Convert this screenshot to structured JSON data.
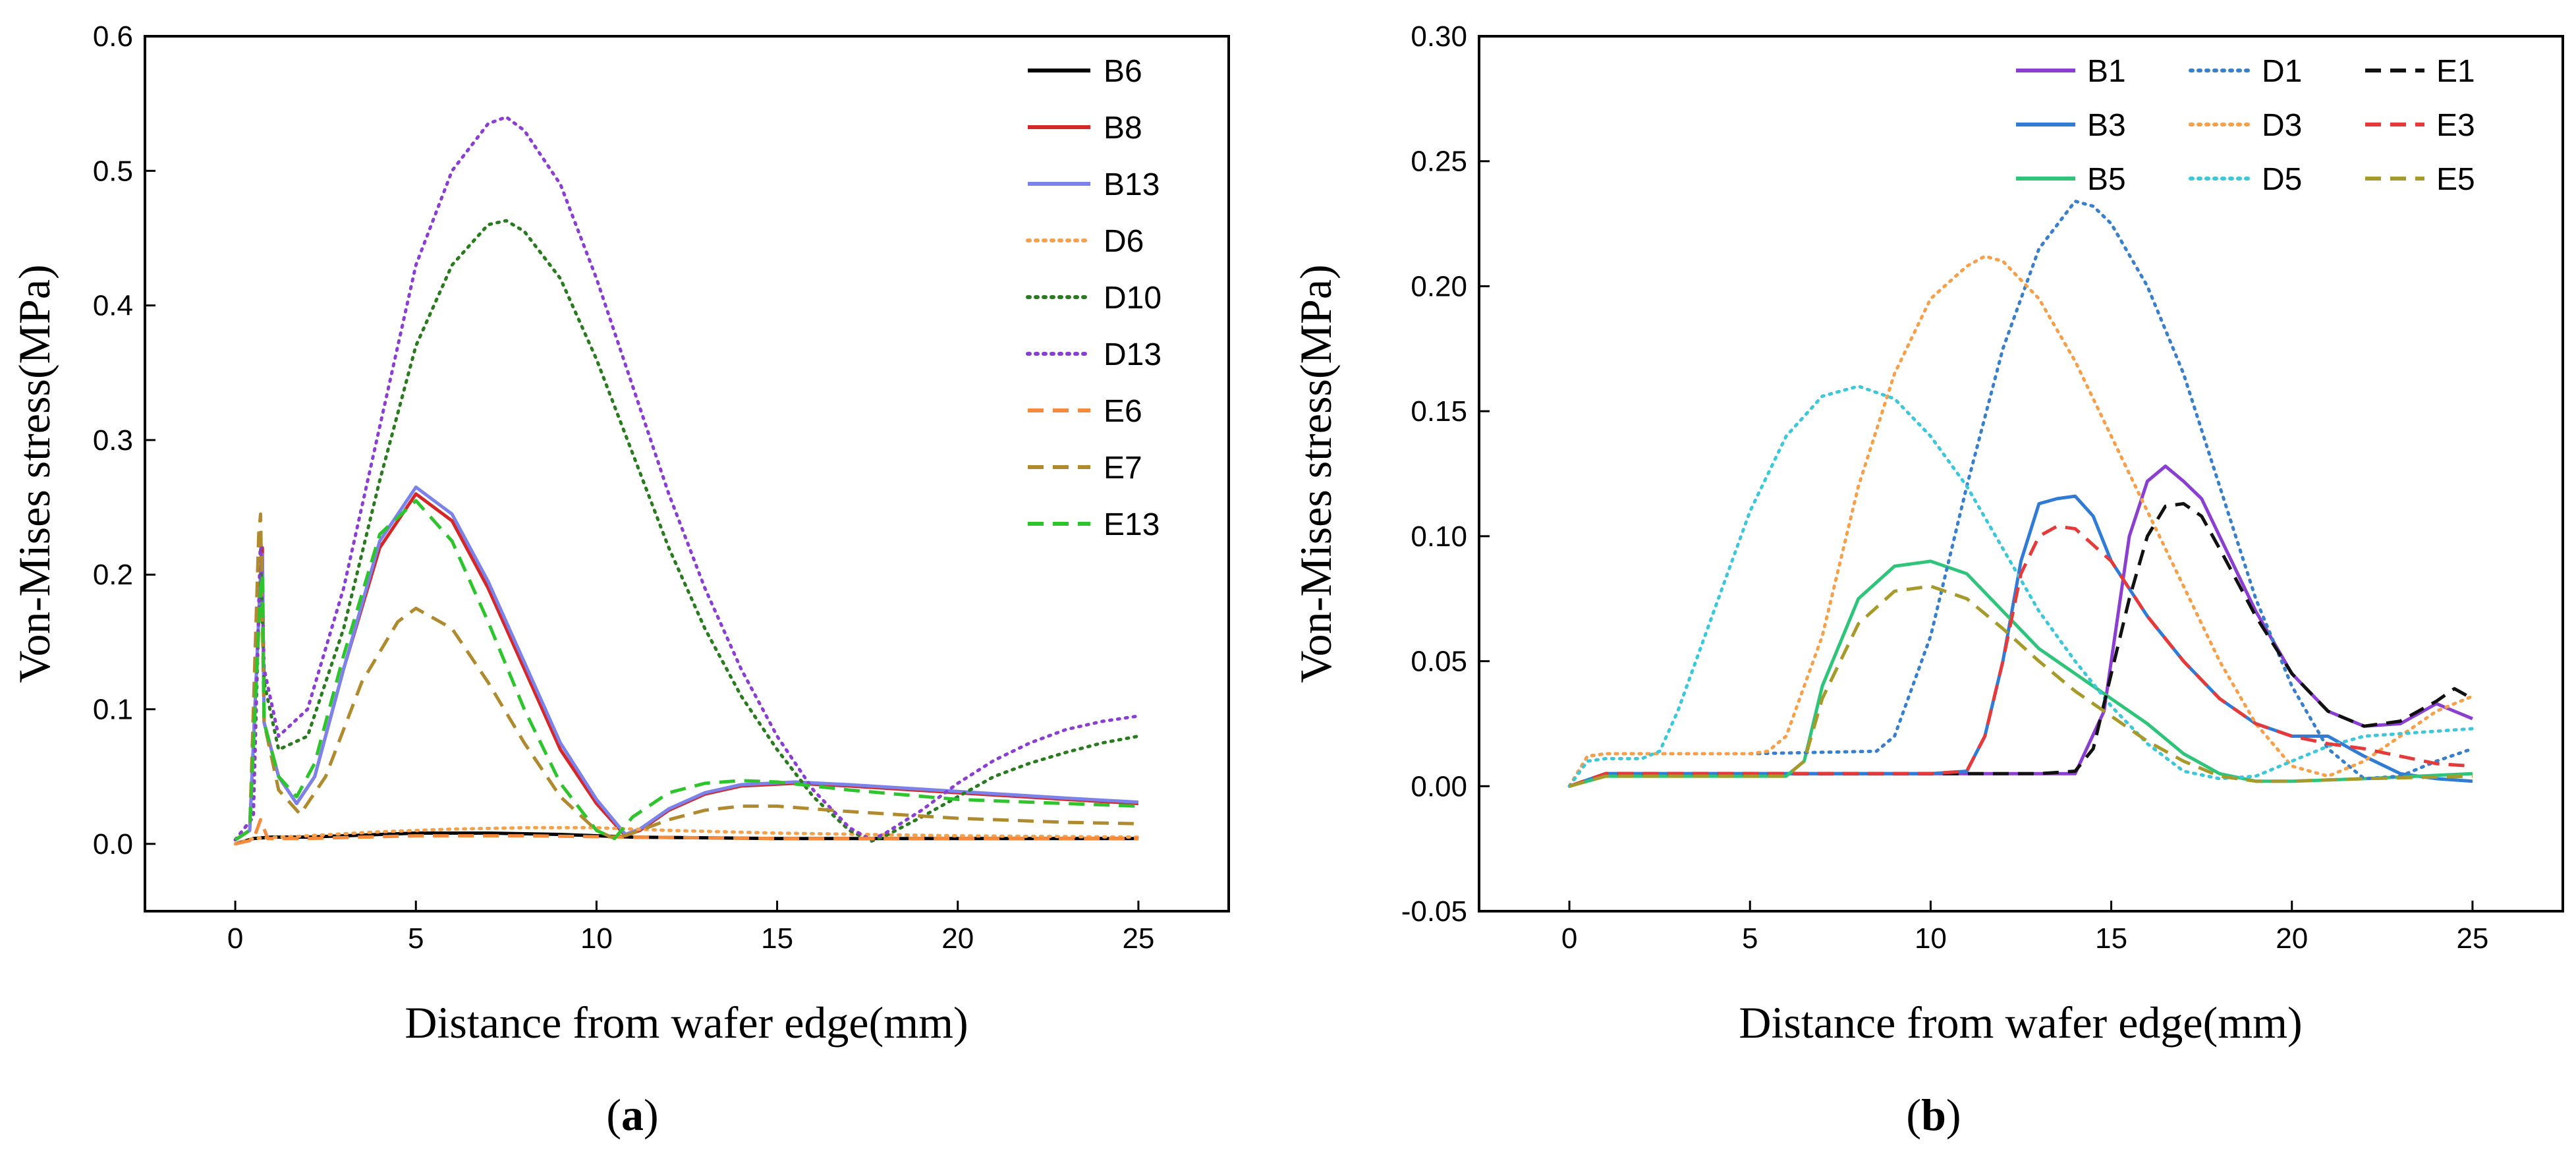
{
  "chart_data": [
    {
      "type": "line",
      "panel_label": "a",
      "title": "",
      "xlabel": "Distance from wafer edge(mm)",
      "ylabel": "Von-Mises stress(MPa)",
      "xlim": [
        -2.5,
        27.5
      ],
      "ylim": [
        -0.05,
        0.6
      ],
      "xticks": [
        0,
        5,
        10,
        15,
        20,
        25
      ],
      "yticks": [
        0.0,
        0.1,
        0.2,
        0.3,
        0.4,
        0.5,
        0.6
      ],
      "ytick_decimals": 1,
      "legend_position": "top-right",
      "legend_layout": "column",
      "series": [
        {
          "name": "B6",
          "color": "#000000",
          "style": "solid",
          "x": [
            0,
            0.5,
            1,
            2,
            3,
            5,
            7,
            9,
            11,
            15,
            20,
            25
          ],
          "y": [
            0.0,
            0.004,
            0.005,
            0.005,
            0.006,
            0.008,
            0.008,
            0.007,
            0.005,
            0.004,
            0.004,
            0.004
          ]
        },
        {
          "name": "B8",
          "color": "#d62728",
          "style": "solid",
          "x": [
            0,
            0.4,
            0.7,
            0.75,
            0.8,
            1.2,
            1.7,
            2.2,
            3,
            4,
            5,
            6,
            7,
            8,
            9,
            10,
            10.8,
            11.2,
            12,
            13,
            14,
            15.5,
            17,
            20,
            23,
            25
          ],
          "y": [
            0.003,
            0.01,
            0.2,
            0.22,
            0.09,
            0.05,
            0.03,
            0.05,
            0.13,
            0.22,
            0.26,
            0.24,
            0.19,
            0.13,
            0.07,
            0.03,
            0.006,
            0.01,
            0.025,
            0.037,
            0.043,
            0.045,
            0.043,
            0.038,
            0.033,
            0.03
          ]
        },
        {
          "name": "B13",
          "color": "#7b83eb",
          "style": "solid",
          "x": [
            0,
            0.4,
            0.7,
            0.75,
            0.8,
            1.2,
            1.7,
            2.2,
            3,
            4,
            5,
            6,
            7,
            8,
            9,
            10,
            10.8,
            11.2,
            12,
            13,
            14,
            15.5,
            17,
            20,
            23,
            25
          ],
          "y": [
            0.003,
            0.01,
            0.2,
            0.215,
            0.09,
            0.05,
            0.03,
            0.05,
            0.13,
            0.225,
            0.265,
            0.245,
            0.195,
            0.135,
            0.075,
            0.033,
            0.007,
            0.011,
            0.026,
            0.038,
            0.044,
            0.046,
            0.044,
            0.039,
            0.034,
            0.031
          ]
        },
        {
          "name": "D6",
          "color": "#f5a04b",
          "style": "dotted",
          "x": [
            0,
            0.5,
            2,
            4,
            6,
            8,
            10,
            12,
            15,
            20,
            25
          ],
          "y": [
            0.0,
            0.004,
            0.006,
            0.009,
            0.011,
            0.012,
            0.012,
            0.01,
            0.008,
            0.006,
            0.005
          ]
        },
        {
          "name": "D10",
          "color": "#2a7a1f",
          "style": "dotted",
          "x": [
            0,
            0.5,
            0.7,
            0.8,
            1.2,
            2,
            3,
            4,
            5,
            6,
            7,
            7.5,
            8,
            9,
            10,
            11,
            12,
            13,
            14,
            15,
            16,
            17,
            17.6,
            18,
            19,
            20,
            21,
            22,
            23,
            24,
            25
          ],
          "y": [
            0.003,
            0.02,
            0.22,
            0.12,
            0.07,
            0.08,
            0.16,
            0.27,
            0.37,
            0.43,
            0.46,
            0.463,
            0.455,
            0.42,
            0.36,
            0.29,
            0.22,
            0.16,
            0.11,
            0.07,
            0.035,
            0.01,
            0.002,
            0.006,
            0.02,
            0.035,
            0.05,
            0.06,
            0.068,
            0.075,
            0.08
          ]
        },
        {
          "name": "D13",
          "color": "#8b3fd1",
          "style": "dotted",
          "x": [
            0,
            0.5,
            0.7,
            0.8,
            1.2,
            2,
            3,
            4,
            5,
            6,
            7,
            7.5,
            8,
            9,
            10,
            11,
            12,
            13,
            14,
            15,
            16,
            17,
            17.6,
            18,
            19,
            20,
            21,
            22,
            23,
            24,
            25
          ],
          "y": [
            0.003,
            0.02,
            0.23,
            0.13,
            0.08,
            0.1,
            0.19,
            0.31,
            0.43,
            0.5,
            0.535,
            0.54,
            0.53,
            0.49,
            0.42,
            0.34,
            0.26,
            0.19,
            0.13,
            0.08,
            0.04,
            0.012,
            0.003,
            0.008,
            0.025,
            0.045,
            0.062,
            0.075,
            0.085,
            0.091,
            0.095
          ]
        },
        {
          "name": "E6",
          "color": "#f58a3c",
          "style": "dashed",
          "x": [
            0,
            0.5,
            0.7,
            0.9,
            2,
            5,
            8,
            11,
            15,
            20,
            25
          ],
          "y": [
            0.0,
            0.003,
            0.018,
            0.004,
            0.004,
            0.006,
            0.006,
            0.005,
            0.004,
            0.004,
            0.004
          ]
        },
        {
          "name": "E7",
          "color": "#b08a2e",
          "style": "dashed",
          "x": [
            0,
            0.4,
            0.65,
            0.7,
            0.8,
            1.2,
            1.8,
            2.5,
            3.5,
            4.5,
            5,
            6,
            7,
            8,
            9,
            10,
            10.5,
            11,
            12,
            13,
            14,
            15,
            17,
            20,
            23,
            25
          ],
          "y": [
            0.003,
            0.01,
            0.23,
            0.245,
            0.09,
            0.04,
            0.022,
            0.05,
            0.12,
            0.165,
            0.175,
            0.16,
            0.12,
            0.075,
            0.035,
            0.01,
            0.004,
            0.008,
            0.018,
            0.025,
            0.028,
            0.028,
            0.024,
            0.019,
            0.016,
            0.015
          ]
        },
        {
          "name": "E13",
          "color": "#2ec42e",
          "style": "dashed",
          "x": [
            0,
            0.4,
            0.7,
            0.75,
            0.8,
            1.2,
            1.7,
            2.2,
            3,
            4,
            5,
            6,
            7,
            8,
            9,
            10,
            10.5,
            11,
            12,
            13,
            14,
            15,
            17,
            20,
            23,
            25
          ],
          "y": [
            0.003,
            0.01,
            0.19,
            0.2,
            0.09,
            0.05,
            0.035,
            0.06,
            0.14,
            0.23,
            0.255,
            0.225,
            0.165,
            0.1,
            0.045,
            0.01,
            0.004,
            0.02,
            0.038,
            0.045,
            0.047,
            0.046,
            0.04,
            0.033,
            0.03,
            0.028
          ]
        }
      ]
    },
    {
      "type": "line",
      "panel_label": "b",
      "title": "",
      "xlabel": "Distance from wafer edge(mm)",
      "ylabel": "Von-Mises stress(MPa)",
      "xlim": [
        -2.5,
        27.5
      ],
      "ylim": [
        -0.05,
        0.3
      ],
      "xticks": [
        0,
        5,
        10,
        15,
        20,
        25
      ],
      "yticks": [
        -0.05,
        0.0,
        0.05,
        0.1,
        0.15,
        0.2,
        0.25,
        0.3
      ],
      "ytick_decimals": 2,
      "legend_position": "top-right",
      "legend_layout": "3x3-grid",
      "series": [
        {
          "name": "B1",
          "color": "#8b3fd1",
          "style": "solid",
          "x": [
            0,
            1,
            5,
            10,
            14,
            14.8,
            15.5,
            16,
            16.5,
            17,
            17.5,
            18,
            19,
            20,
            21,
            22,
            23,
            24,
            24.5,
            25
          ],
          "y": [
            0.0,
            0.005,
            0.005,
            0.005,
            0.005,
            0.03,
            0.1,
            0.122,
            0.128,
            0.122,
            0.115,
            0.1,
            0.07,
            0.045,
            0.03,
            0.024,
            0.025,
            0.033,
            0.03,
            0.027
          ]
        },
        {
          "name": "B3",
          "color": "#2f7bd6",
          "style": "solid",
          "x": [
            0,
            1,
            5,
            10,
            11,
            11.5,
            12,
            12.5,
            13,
            13.5,
            14,
            14.5,
            15,
            16,
            17,
            18,
            19,
            20,
            21,
            22,
            23,
            24,
            25
          ],
          "y": [
            0.0,
            0.005,
            0.005,
            0.005,
            0.006,
            0.02,
            0.05,
            0.09,
            0.113,
            0.115,
            0.116,
            0.108,
            0.09,
            0.068,
            0.05,
            0.035,
            0.025,
            0.02,
            0.02,
            0.012,
            0.005,
            0.003,
            0.002
          ]
        },
        {
          "name": "B5",
          "color": "#2ec47a",
          "style": "solid",
          "x": [
            0,
            1,
            5,
            6,
            6.5,
            7,
            8,
            9,
            10,
            11,
            12,
            13,
            14,
            15,
            16,
            17,
            18,
            19,
            20,
            22,
            25
          ],
          "y": [
            0.0,
            0.004,
            0.004,
            0.004,
            0.01,
            0.04,
            0.075,
            0.088,
            0.09,
            0.085,
            0.07,
            0.055,
            0.045,
            0.035,
            0.025,
            0.013,
            0.005,
            0.002,
            0.002,
            0.003,
            0.005
          ]
        },
        {
          "name": "D1",
          "color": "#3a7fc9",
          "style": "dotted",
          "x": [
            0,
            0.5,
            1,
            5,
            8.5,
            9,
            10,
            11,
            12,
            13,
            14,
            14.5,
            15,
            16,
            17,
            18,
            19,
            20,
            21,
            22,
            23,
            24,
            25
          ],
          "y": [
            0.0,
            0.012,
            0.013,
            0.013,
            0.014,
            0.02,
            0.06,
            0.12,
            0.175,
            0.215,
            0.234,
            0.232,
            0.225,
            0.2,
            0.165,
            0.12,
            0.075,
            0.04,
            0.015,
            0.003,
            0.004,
            0.01,
            0.015
          ]
        },
        {
          "name": "D3",
          "color": "#f5a04b",
          "style": "dotted",
          "x": [
            0,
            0.5,
            1,
            5,
            5.5,
            6,
            7,
            8,
            9,
            10,
            11,
            11.5,
            12,
            13,
            14,
            15,
            16,
            17,
            18,
            19,
            20,
            21,
            22,
            23,
            24,
            25
          ],
          "y": [
            0.0,
            0.012,
            0.013,
            0.013,
            0.014,
            0.02,
            0.06,
            0.12,
            0.165,
            0.195,
            0.208,
            0.212,
            0.21,
            0.195,
            0.17,
            0.14,
            0.11,
            0.08,
            0.05,
            0.025,
            0.008,
            0.004,
            0.01,
            0.02,
            0.03,
            0.036
          ]
        },
        {
          "name": "D5",
          "color": "#3cc8d8",
          "style": "dotted",
          "x": [
            0,
            0.5,
            1,
            2,
            2.5,
            3,
            4,
            5,
            6,
            7,
            8,
            9,
            10,
            11,
            12,
            13,
            14,
            15,
            16,
            17,
            18,
            19,
            20,
            21,
            22,
            25
          ],
          "y": [
            0.0,
            0.01,
            0.011,
            0.011,
            0.014,
            0.03,
            0.07,
            0.11,
            0.14,
            0.156,
            0.16,
            0.155,
            0.14,
            0.12,
            0.095,
            0.07,
            0.05,
            0.032,
            0.017,
            0.006,
            0.003,
            0.004,
            0.01,
            0.016,
            0.02,
            0.023
          ]
        },
        {
          "name": "E1",
          "color": "#111111",
          "style": "dashed",
          "x": [
            0,
            1,
            5,
            10,
            13,
            14,
            14.5,
            15,
            15.5,
            16,
            16.5,
            17,
            17.5,
            18,
            19,
            20,
            21,
            22,
            23,
            24,
            24.5,
            25
          ],
          "y": [
            0.0,
            0.005,
            0.005,
            0.005,
            0.005,
            0.006,
            0.015,
            0.045,
            0.075,
            0.1,
            0.112,
            0.113,
            0.108,
            0.095,
            0.068,
            0.045,
            0.03,
            0.024,
            0.026,
            0.034,
            0.039,
            0.035
          ]
        },
        {
          "name": "E3",
          "color": "#e63a3a",
          "style": "dashed",
          "x": [
            0,
            1,
            5,
            10,
            11,
            11.5,
            12,
            12.5,
            13,
            13.5,
            14,
            15,
            16,
            17,
            18,
            19,
            20,
            21,
            22,
            23,
            24,
            25
          ],
          "y": [
            0.0,
            0.005,
            0.005,
            0.005,
            0.006,
            0.02,
            0.05,
            0.085,
            0.1,
            0.104,
            0.103,
            0.09,
            0.068,
            0.05,
            0.035,
            0.025,
            0.02,
            0.017,
            0.015,
            0.012,
            0.009,
            0.008
          ]
        },
        {
          "name": "E5",
          "color": "#a69a2a",
          "style": "dashed",
          "x": [
            0,
            1,
            5,
            6,
            6.5,
            7,
            8,
            9,
            10,
            11,
            12,
            13,
            14,
            15,
            16,
            17,
            18,
            19,
            20,
            22,
            25
          ],
          "y": [
            0.0,
            0.004,
            0.004,
            0.004,
            0.01,
            0.035,
            0.065,
            0.078,
            0.08,
            0.075,
            0.063,
            0.05,
            0.038,
            0.028,
            0.018,
            0.01,
            0.004,
            0.002,
            0.002,
            0.003,
            0.004
          ]
        }
      ]
    }
  ]
}
